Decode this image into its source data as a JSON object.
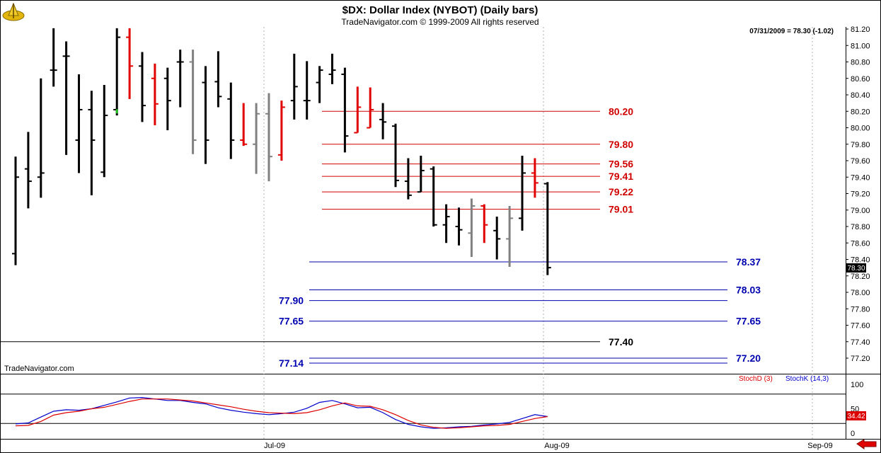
{
  "header": {
    "title": "$DX:  Dollar Index (NYBOT)  (Daily bars)",
    "subtitle": "TradeNavigator.com © 1999-2009 All rights reserved"
  },
  "readout": "07/31/2009 = 78.30 (-1.02)",
  "watermark": "TradeNavigator.com",
  "last_price_label": "78.30",
  "indicator": {
    "legend_d": "StochD (3)",
    "legend_k": "StochK (14,3)",
    "last_value_label": "34.42",
    "y_ticks": [
      "100",
      "50",
      "0"
    ]
  },
  "x_labels": [
    "Jul-09",
    "Aug-09",
    "Sep-09"
  ],
  "colors": {
    "up": "#000000",
    "down": "#e00000",
    "neutral": "#808080",
    "support": "#0000b0",
    "resistance": "#d00000",
    "stoch_k": "#0000cc",
    "stoch_d": "#dd0000"
  },
  "chart_data": [
    {
      "type": "ohlc",
      "title": "$DX:  Dollar Index (NYBOT)  (Daily bars)",
      "ylim": [
        77.05,
        81.25
      ],
      "y_ticks": [
        "81.20",
        "81.00",
        "80.80",
        "80.60",
        "80.40",
        "80.20",
        "80.00",
        "79.80",
        "79.60",
        "79.40",
        "79.20",
        "79.00",
        "78.80",
        "78.60",
        "78.40",
        "78.20",
        "78.00",
        "77.80",
        "77.60",
        "77.40",
        "77.20"
      ],
      "bars": [
        {
          "o": 78.47,
          "h": 79.65,
          "l": 78.33,
          "c": 79.4,
          "color": "black"
        },
        {
          "o": 79.5,
          "h": 79.95,
          "l": 79.02,
          "c": 79.35,
          "color": "black"
        },
        {
          "o": 79.4,
          "h": 80.6,
          "l": 79.15,
          "c": 79.45,
          "color": "black"
        },
        {
          "o": 80.7,
          "h": 81.21,
          "l": 80.5,
          "c": 80.7,
          "color": "black"
        },
        {
          "o": 80.87,
          "h": 81.05,
          "l": 79.67,
          "c": 80.87,
          "color": "black"
        },
        {
          "o": 79.85,
          "h": 80.65,
          "l": 79.45,
          "c": 80.22,
          "color": "black"
        },
        {
          "o": 80.22,
          "h": 80.45,
          "l": 79.18,
          "c": 79.85,
          "color": "black"
        },
        {
          "o": 79.46,
          "h": 80.52,
          "l": 79.4,
          "c": 80.15,
          "color": "black"
        },
        {
          "o": 80.22,
          "h": 81.21,
          "l": 80.15,
          "c": 81.1,
          "color": "black"
        },
        {
          "o": 81.1,
          "h": 81.21,
          "l": 80.35,
          "c": 80.75,
          "color": "red"
        },
        {
          "o": 80.75,
          "h": 80.92,
          "l": 80.07,
          "c": 80.27,
          "color": "black"
        },
        {
          "o": 80.6,
          "h": 80.78,
          "l": 80.03,
          "c": 80.29,
          "color": "red"
        },
        {
          "o": 80.6,
          "h": 80.73,
          "l": 79.97,
          "c": 80.33,
          "color": "black"
        },
        {
          "o": 80.8,
          "h": 80.95,
          "l": 80.25,
          "c": 80.8,
          "color": "black"
        },
        {
          "o": 80.8,
          "h": 80.95,
          "l": 79.68,
          "c": 79.85,
          "color": "gray"
        },
        {
          "o": 80.55,
          "h": 80.75,
          "l": 79.56,
          "c": 79.85,
          "color": "black"
        },
        {
          "o": 80.56,
          "h": 80.93,
          "l": 80.25,
          "c": 80.38,
          "color": "black"
        },
        {
          "o": 80.35,
          "h": 80.55,
          "l": 79.62,
          "c": 79.85,
          "color": "black"
        },
        {
          "o": 79.85,
          "h": 80.3,
          "l": 79.78,
          "c": 79.8,
          "color": "red"
        },
        {
          "o": 79.8,
          "h": 80.3,
          "l": 79.44,
          "c": 80.17,
          "color": "gray"
        },
        {
          "o": 80.17,
          "h": 80.42,
          "l": 79.35,
          "c": 79.65,
          "color": "gray"
        },
        {
          "o": 79.67,
          "h": 80.33,
          "l": 79.6,
          "c": 80.25,
          "color": "red"
        },
        {
          "o": 80.33,
          "h": 80.9,
          "l": 80.1,
          "c": 80.5,
          "color": "black"
        },
        {
          "o": 80.33,
          "h": 80.81,
          "l": 80.1,
          "c": 80.33,
          "color": "black"
        },
        {
          "o": 80.55,
          "h": 80.75,
          "l": 80.3,
          "c": 80.7,
          "color": "black"
        },
        {
          "o": 80.65,
          "h": 80.9,
          "l": 80.53,
          "c": 80.7,
          "color": "black"
        },
        {
          "o": 80.65,
          "h": 80.73,
          "l": 79.7,
          "c": 79.9,
          "color": "black"
        },
        {
          "o": 79.94,
          "h": 80.5,
          "l": 79.94,
          "c": 80.25,
          "color": "red"
        },
        {
          "o": 80.0,
          "h": 80.49,
          "l": 80.0,
          "c": 80.22,
          "color": "red"
        },
        {
          "o": 80.1,
          "h": 80.3,
          "l": 79.86,
          "c": 80.07,
          "color": "black"
        },
        {
          "o": 80.02,
          "h": 80.05,
          "l": 79.28,
          "c": 79.36,
          "color": "black"
        },
        {
          "o": 79.35,
          "h": 79.63,
          "l": 79.13,
          "c": 79.18,
          "color": "black"
        },
        {
          "o": 79.22,
          "h": 79.66,
          "l": 79.22,
          "c": 79.48,
          "color": "black"
        },
        {
          "o": 79.5,
          "h": 79.53,
          "l": 78.8,
          "c": 78.82,
          "color": "black"
        },
        {
          "o": 78.82,
          "h": 79.07,
          "l": 78.6,
          "c": 78.92,
          "color": "black"
        },
        {
          "o": 78.8,
          "h": 79.03,
          "l": 78.57,
          "c": 78.76,
          "color": "black"
        },
        {
          "o": 78.72,
          "h": 79.14,
          "l": 78.43,
          "c": 79.05,
          "color": "gray"
        },
        {
          "o": 79.05,
          "h": 79.07,
          "l": 78.6,
          "c": 78.82,
          "color": "red"
        },
        {
          "o": 78.75,
          "h": 78.92,
          "l": 78.4,
          "c": 78.65,
          "color": "black"
        },
        {
          "o": 78.65,
          "h": 79.05,
          "l": 78.31,
          "c": 78.9,
          "color": "gray"
        },
        {
          "o": 78.9,
          "h": 79.66,
          "l": 78.75,
          "c": 79.45,
          "color": "black"
        },
        {
          "o": 79.45,
          "h": 79.63,
          "l": 79.15,
          "c": 79.33,
          "color": "red"
        },
        {
          "o": 79.32,
          "h": 79.34,
          "l": 78.21,
          "c": 78.3,
          "color": "black"
        }
      ],
      "support_levels": [
        {
          "value": 78.37,
          "label": "78.37",
          "side": "right"
        },
        {
          "value": 78.03,
          "label": "78.03",
          "side": "right"
        },
        {
          "value": 77.9,
          "label": "77.90",
          "side": "left"
        },
        {
          "value": 77.65,
          "label": "77.65",
          "side": "left"
        },
        {
          "value": 77.65,
          "label": "77.65",
          "side": "right"
        },
        {
          "value": 77.2,
          "label": "77.20",
          "side": "right"
        },
        {
          "value": 77.14,
          "label": "77.14",
          "side": "left"
        }
      ],
      "resistance_levels": [
        {
          "value": 80.2,
          "label": "80.20"
        },
        {
          "value": 79.8,
          "label": "79.80"
        },
        {
          "value": 79.56,
          "label": "79.56"
        },
        {
          "value": 79.41,
          "label": "79.41"
        },
        {
          "value": 79.22,
          "label": "79.22"
        },
        {
          "value": 79.01,
          "label": "79.01"
        }
      ],
      "pivot_level": {
        "value": 77.4,
        "label": "77.40"
      }
    },
    {
      "type": "line",
      "title": "",
      "ylim": [
        0,
        100
      ],
      "reference_lines": [
        80,
        20
      ],
      "series": [
        {
          "name": "StochK (14,3)",
          "color": "#0000cc",
          "values": [
            19,
            21,
            33,
            45,
            48,
            47,
            50,
            57,
            64,
            72,
            73,
            70,
            67,
            67,
            63,
            60,
            52,
            47,
            43,
            40,
            38,
            40,
            43,
            51,
            63,
            67,
            60,
            52,
            53,
            42,
            28,
            18,
            13,
            10,
            11,
            13,
            14,
            17,
            19,
            22,
            30,
            38,
            34
          ]
        },
        {
          "name": "StochD (3)",
          "color": "#dd0000",
          "values": [
            15,
            16,
            24,
            37,
            42,
            45,
            50,
            53,
            59,
            65,
            70,
            70,
            70,
            68,
            66,
            62,
            58,
            54,
            49,
            45,
            42,
            41,
            40,
            42,
            48,
            56,
            62,
            56,
            55,
            48,
            38,
            26,
            17,
            12,
            10,
            11,
            13,
            15,
            16,
            18,
            24,
            30,
            34
          ]
        }
      ]
    }
  ]
}
